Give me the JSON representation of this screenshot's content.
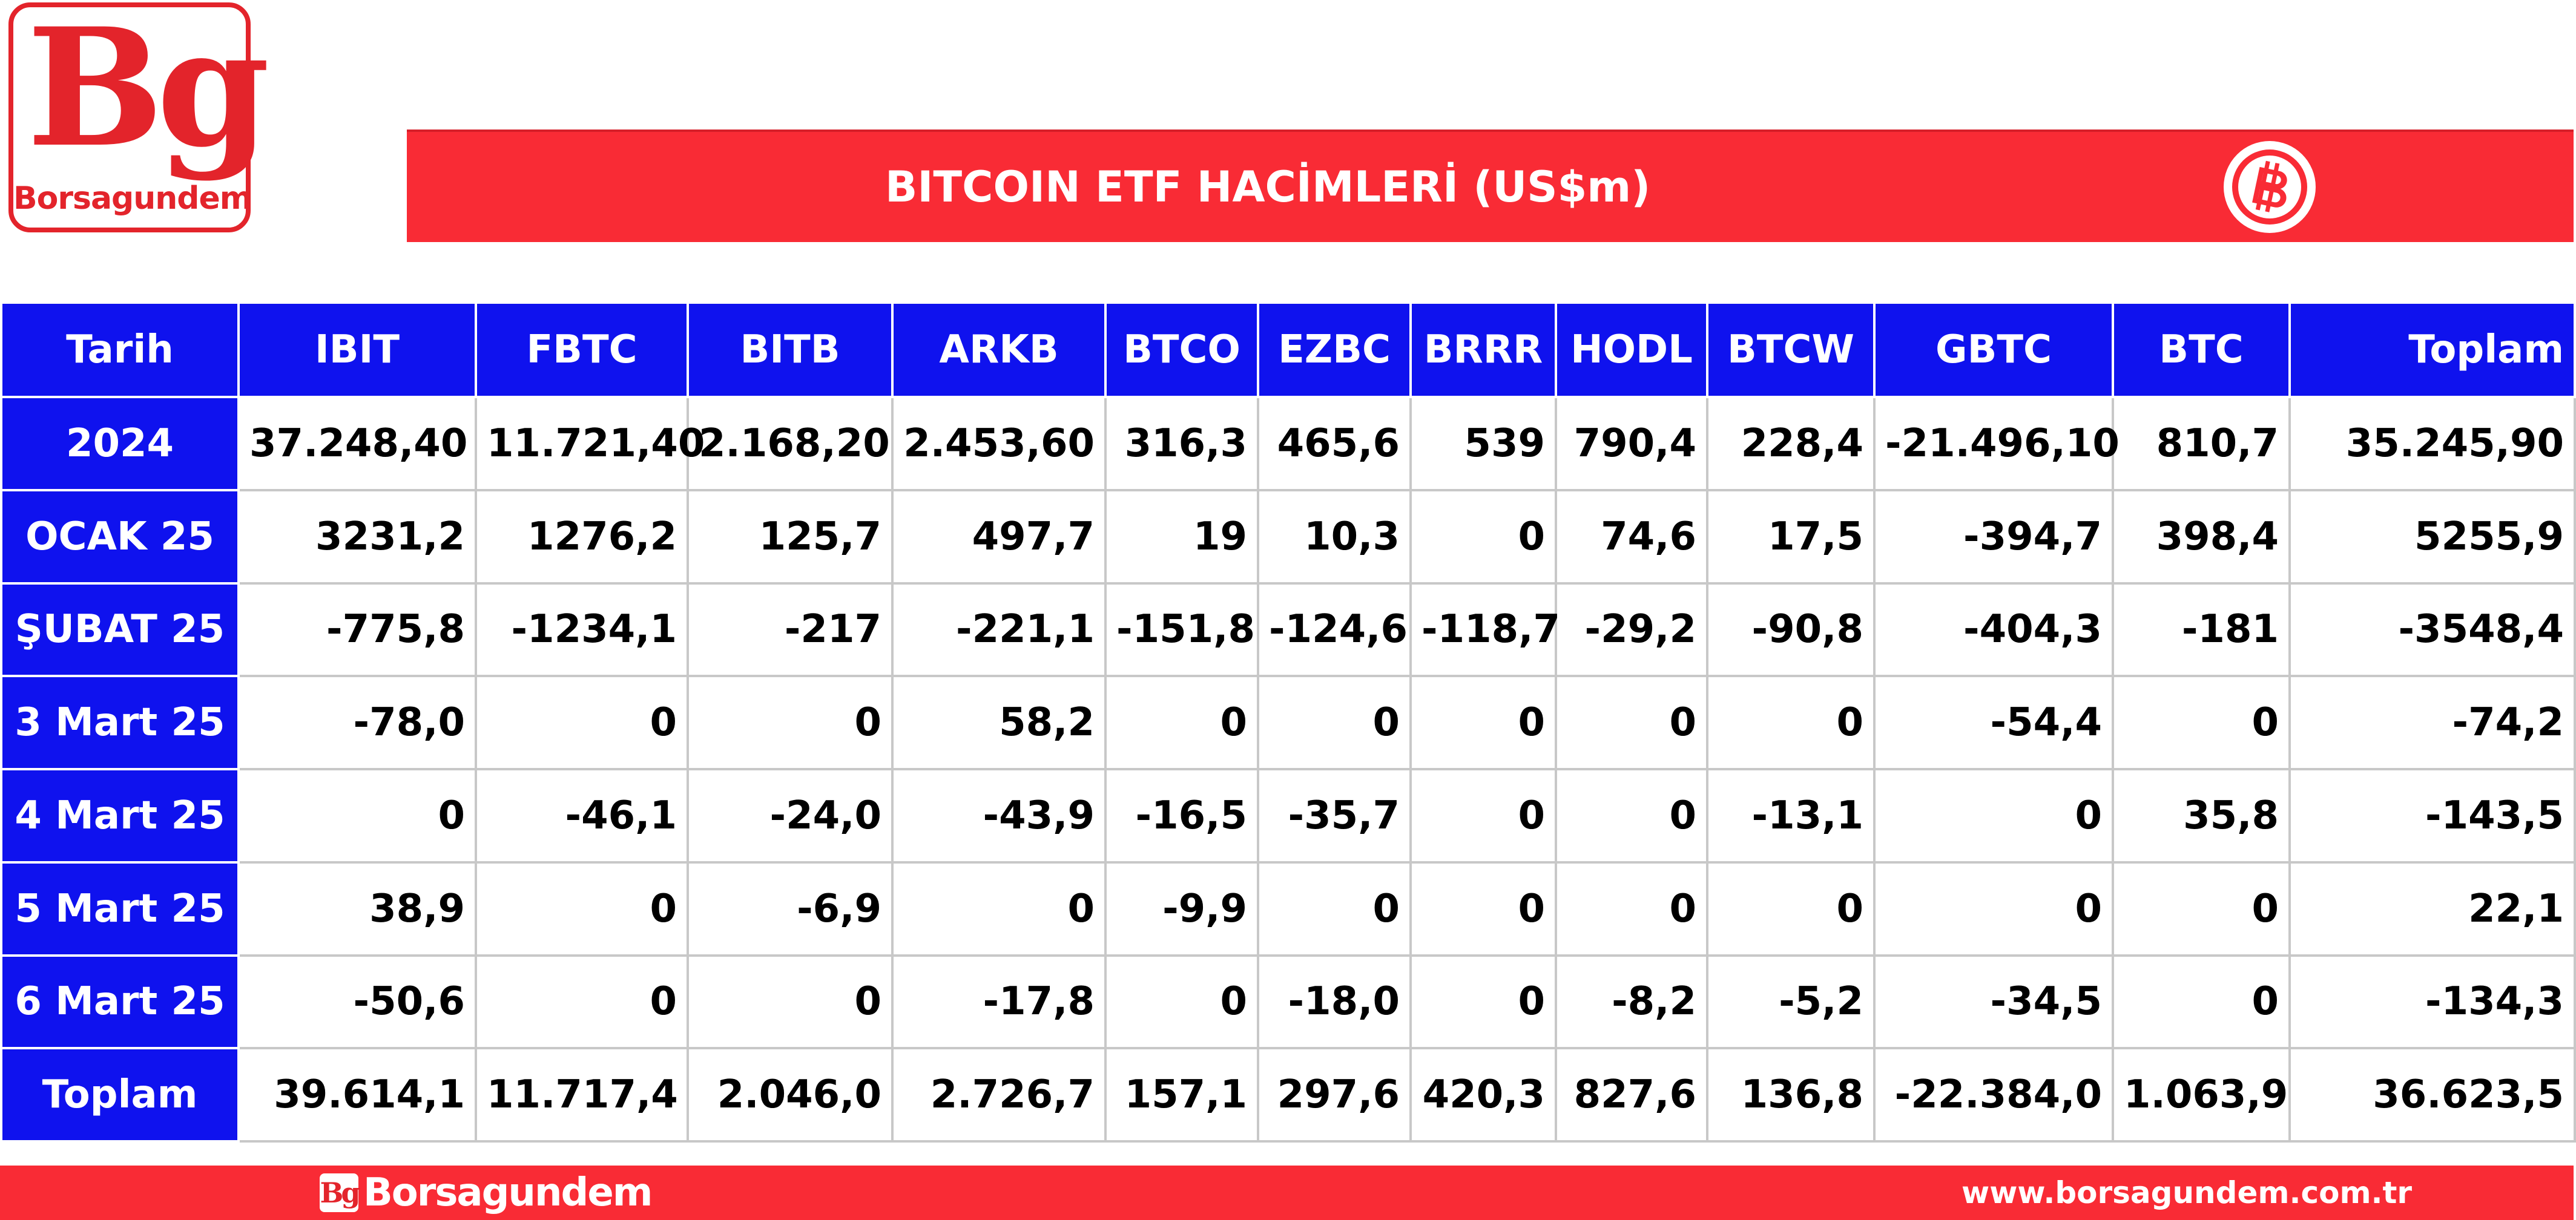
{
  "brand": {
    "logo_letters": "Bg",
    "logo_word": "Borsagundem",
    "footer_word": "Borsagundem",
    "website": "www.borsagundem.com.tr",
    "primary_color": "#f92b35",
    "table_header_color": "#0f12ee"
  },
  "header": {
    "title": "BITCOIN ETF HACİMLERİ (US$m)",
    "icon": "bitcoin-icon"
  },
  "table": {
    "columns": [
      "Tarih",
      "IBIT",
      "FBTC",
      "BITB",
      "ARKB",
      "BTCO",
      "EZBC",
      "BRRR",
      "HODL",
      "BTCW",
      "GBTC",
      "BTC",
      "Toplam"
    ],
    "rows": [
      {
        "label": "2024",
        "cells": [
          "37.248,40",
          "11.721,40",
          "2.168,20",
          "2.453,60",
          "316,3",
          "465,6",
          "539",
          "790,4",
          "228,4",
          "-21.496,10",
          "810,7",
          "35.245,90"
        ]
      },
      {
        "label": "OCAK 25",
        "cells": [
          "3231,2",
          "1276,2",
          "125,7",
          "497,7",
          "19",
          "10,3",
          "0",
          "74,6",
          "17,5",
          "-394,7",
          "398,4",
          "5255,9"
        ]
      },
      {
        "label": "ŞUBAT 25",
        "cells": [
          "-775,8",
          "-1234,1",
          "-217",
          "-221,1",
          "-151,8",
          "-124,6",
          "-118,7",
          "-29,2",
          "-90,8",
          "-404,3",
          "-181",
          "-3548,4"
        ]
      },
      {
        "label": "3 Mart 25",
        "cells": [
          "-78,0",
          "0",
          "0",
          "58,2",
          "0",
          "0",
          "0",
          "0",
          "0",
          "-54,4",
          "0",
          "-74,2"
        ]
      },
      {
        "label": "4 Mart 25",
        "cells": [
          "0",
          "-46,1",
          "-24,0",
          "-43,9",
          "-16,5",
          "-35,7",
          "0",
          "0",
          "-13,1",
          "0",
          "35,8",
          "-143,5"
        ]
      },
      {
        "label": "5 Mart 25",
        "cells": [
          "38,9",
          "0",
          "-6,9",
          "0",
          "-9,9",
          "0",
          "0",
          "0",
          "0",
          "0",
          "0",
          "22,1"
        ]
      },
      {
        "label": "6 Mart 25",
        "cells": [
          "-50,6",
          "0",
          "0",
          "-17,8",
          "0",
          "-18,0",
          "0",
          "-8,2",
          "-5,2",
          "-34,5",
          "0",
          "-134,3"
        ]
      },
      {
        "label": "Toplam",
        "cells": [
          "39.614,1",
          "11.717,4",
          "2.046,0",
          "2.726,7",
          "157,1",
          "297,6",
          "420,3",
          "827,6",
          "136,8",
          "-22.384,0",
          "1.063,9",
          "36.623,5"
        ]
      }
    ]
  }
}
